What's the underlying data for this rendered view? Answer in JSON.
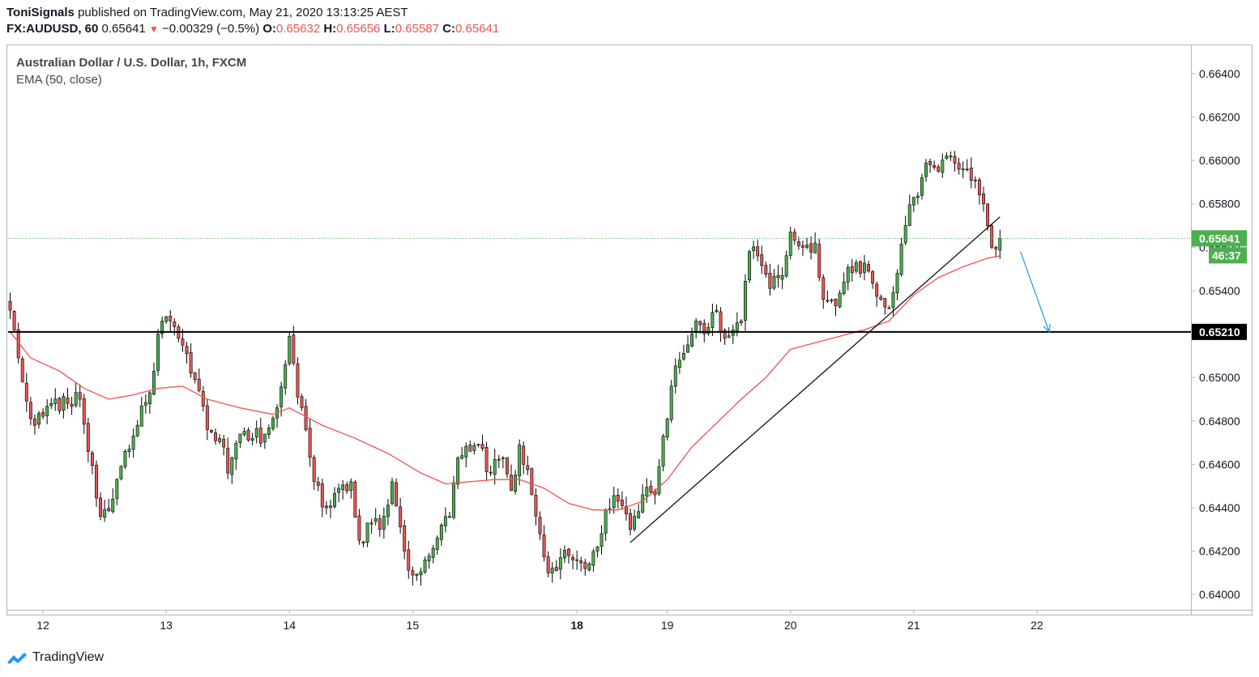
{
  "header": {
    "author": "ToniSignals",
    "published_text": "published on TradingView.com, May 21, 2020 13:13:25 AEST",
    "symbol": "FX:AUDUSD, 60",
    "last": "0.65641",
    "change_arrow": "▼",
    "change": "−0.00329 (−0.5%)",
    "o_label": "O:",
    "o_value": "0.65632",
    "h_label": "H:",
    "h_value": "0.65656",
    "l_label": "L:",
    "l_value": "0.65587",
    "c_label": "C:",
    "c_value": "0.65641"
  },
  "brand": {
    "name": "TradingView",
    "icon": "tradingview-logo-icon"
  },
  "colors": {
    "up": "#4caf50",
    "down": "#ef5350",
    "ema": "#ef5350",
    "price_tag": "#4caf50",
    "level": "#000000",
    "arrow": "#2196f3"
  },
  "chart_data": {
    "type": "candlestick",
    "title": "Australian Dollar / U.S. Dollar, 1h, FXCM",
    "indicator": "EMA (50, close)",
    "y_ticks": [
      "0.66400",
      "0.66200",
      "0.66000",
      "0.65800",
      "0.65600",
      "0.65400",
      "0.65210",
      "0.65000",
      "0.64800",
      "0.64600",
      "0.64400",
      "0.64200",
      "0.64000"
    ],
    "ylim": [
      0.6393,
      0.6653
    ],
    "x_ticks": [
      {
        "label": "12",
        "bar": 8,
        "bold": false
      },
      {
        "label": "13",
        "bar": 38,
        "bold": false
      },
      {
        "label": "14",
        "bar": 68,
        "bold": false
      },
      {
        "label": "15",
        "bar": 98,
        "bold": false
      },
      {
        "label": "18",
        "bar": 138,
        "bold": true
      },
      {
        "label": "19",
        "bar": 160,
        "bold": false
      },
      {
        "label": "20",
        "bar": 190,
        "bold": false
      },
      {
        "label": "21",
        "bar": 220,
        "bold": false
      },
      {
        "label": "22",
        "bar": 250,
        "bold": false
      }
    ],
    "total_slots": 288,
    "current_price": "0.65641",
    "countdown": "46:37",
    "horizontal_level": {
      "value": 0.6521,
      "label": "0.65210"
    },
    "trendline": {
      "from": {
        "bar": 151,
        "price": 0.6424
      },
      "to": {
        "bar": 241,
        "price": 0.6574
      }
    },
    "arrow": {
      "from": {
        "bar": 246,
        "price": 0.6558
      },
      "to": {
        "bar": 253,
        "price": 0.6521
      }
    },
    "key_points": [
      [
        0,
        0.6531
      ],
      [
        3,
        0.6498
      ],
      [
        6,
        0.6478
      ],
      [
        10,
        0.6488
      ],
      [
        14,
        0.6488
      ],
      [
        17,
        0.649
      ],
      [
        22,
        0.6436
      ],
      [
        25,
        0.6444
      ],
      [
        28,
        0.6466
      ],
      [
        31,
        0.6478
      ],
      [
        34,
        0.6493
      ],
      [
        36,
        0.652
      ],
      [
        38,
        0.6528
      ],
      [
        41,
        0.6518
      ],
      [
        44,
        0.6502
      ],
      [
        46,
        0.6494
      ],
      [
        48,
        0.6476
      ],
      [
        51,
        0.6472
      ],
      [
        53,
        0.6456
      ],
      [
        56,
        0.6474
      ],
      [
        59,
        0.6472
      ],
      [
        62,
        0.6474
      ],
      [
        65,
        0.6486
      ],
      [
        67,
        0.6506
      ],
      [
        68,
        0.6519
      ],
      [
        70,
        0.6491
      ],
      [
        72,
        0.6476
      ],
      [
        74,
        0.6452
      ],
      [
        77,
        0.644
      ],
      [
        80,
        0.6449
      ],
      [
        83,
        0.6452
      ],
      [
        85,
        0.6425
      ],
      [
        88,
        0.6433
      ],
      [
        90,
        0.643
      ],
      [
        93,
        0.6452
      ],
      [
        96,
        0.642
      ],
      [
        98,
        0.6409
      ],
      [
        101,
        0.6416
      ],
      [
        104,
        0.6426
      ],
      [
        107,
        0.6436
      ],
      [
        109,
        0.6463
      ],
      [
        112,
        0.6466
      ],
      [
        114,
        0.6469
      ],
      [
        117,
        0.6456
      ],
      [
        120,
        0.6463
      ],
      [
        122,
        0.6448
      ],
      [
        124,
        0.6469
      ],
      [
        127,
        0.6446
      ],
      [
        129,
        0.6428
      ],
      [
        131,
        0.641
      ],
      [
        134,
        0.6417
      ],
      [
        137,
        0.6416
      ],
      [
        140,
        0.6412
      ],
      [
        143,
        0.6422
      ],
      [
        145,
        0.6439
      ],
      [
        148,
        0.6443
      ],
      [
        151,
        0.643
      ],
      [
        154,
        0.6446
      ],
      [
        157,
        0.6446
      ],
      [
        159,
        0.6473
      ],
      [
        161,
        0.6496
      ],
      [
        163,
        0.6508
      ],
      [
        165,
        0.6515
      ],
      [
        167,
        0.6526
      ],
      [
        170,
        0.6523
      ],
      [
        172,
        0.6531
      ],
      [
        174,
        0.6518
      ],
      [
        176,
        0.6522
      ],
      [
        178,
        0.6526
      ],
      [
        180,
        0.6558
      ],
      [
        182,
        0.6556
      ],
      [
        185,
        0.6541
      ],
      [
        188,
        0.6547
      ],
      [
        190,
        0.6567
      ],
      [
        193,
        0.656
      ],
      [
        196,
        0.6562
      ],
      [
        198,
        0.6536
      ],
      [
        201,
        0.6533
      ],
      [
        203,
        0.6544
      ],
      [
        206,
        0.6553
      ],
      [
        209,
        0.6549
      ],
      [
        212,
        0.6536
      ],
      [
        214,
        0.6532
      ],
      [
        216,
        0.6548
      ],
      [
        218,
        0.657
      ],
      [
        220,
        0.6583
      ],
      [
        222,
        0.6592
      ],
      [
        224,
        0.6598
      ],
      [
        226,
        0.6595
      ],
      [
        229,
        0.6602
      ],
      [
        231,
        0.6596
      ],
      [
        233,
        0.6596
      ],
      [
        235,
        0.6591
      ],
      [
        237,
        0.658
      ],
      [
        238,
        0.657
      ],
      [
        239,
        0.656
      ],
      [
        241,
        0.6564
      ]
    ],
    "ema_points": [
      [
        0,
        0.6521
      ],
      [
        5,
        0.6509
      ],
      [
        12,
        0.6503
      ],
      [
        18,
        0.6495
      ],
      [
        24,
        0.649
      ],
      [
        30,
        0.6492
      ],
      [
        36,
        0.6495
      ],
      [
        42,
        0.6496
      ],
      [
        48,
        0.649
      ],
      [
        56,
        0.6486
      ],
      [
        64,
        0.6483
      ],
      [
        68,
        0.6486
      ],
      [
        76,
        0.6478
      ],
      [
        84,
        0.6472
      ],
      [
        92,
        0.6465
      ],
      [
        100,
        0.6456
      ],
      [
        106,
        0.6451
      ],
      [
        112,
        0.6452
      ],
      [
        118,
        0.6453
      ],
      [
        124,
        0.6453
      ],
      [
        130,
        0.6449
      ],
      [
        136,
        0.6442
      ],
      [
        142,
        0.6439
      ],
      [
        148,
        0.6439
      ],
      [
        154,
        0.6443
      ],
      [
        160,
        0.6453
      ],
      [
        166,
        0.6468
      ],
      [
        172,
        0.6479
      ],
      [
        178,
        0.649
      ],
      [
        184,
        0.65
      ],
      [
        190,
        0.6513
      ],
      [
        196,
        0.6516
      ],
      [
        202,
        0.6519
      ],
      [
        208,
        0.6522
      ],
      [
        214,
        0.6526
      ],
      [
        220,
        0.6538
      ],
      [
        226,
        0.6546
      ],
      [
        232,
        0.6551
      ],
      [
        238,
        0.6555
      ],
      [
        241,
        0.6556
      ]
    ]
  }
}
